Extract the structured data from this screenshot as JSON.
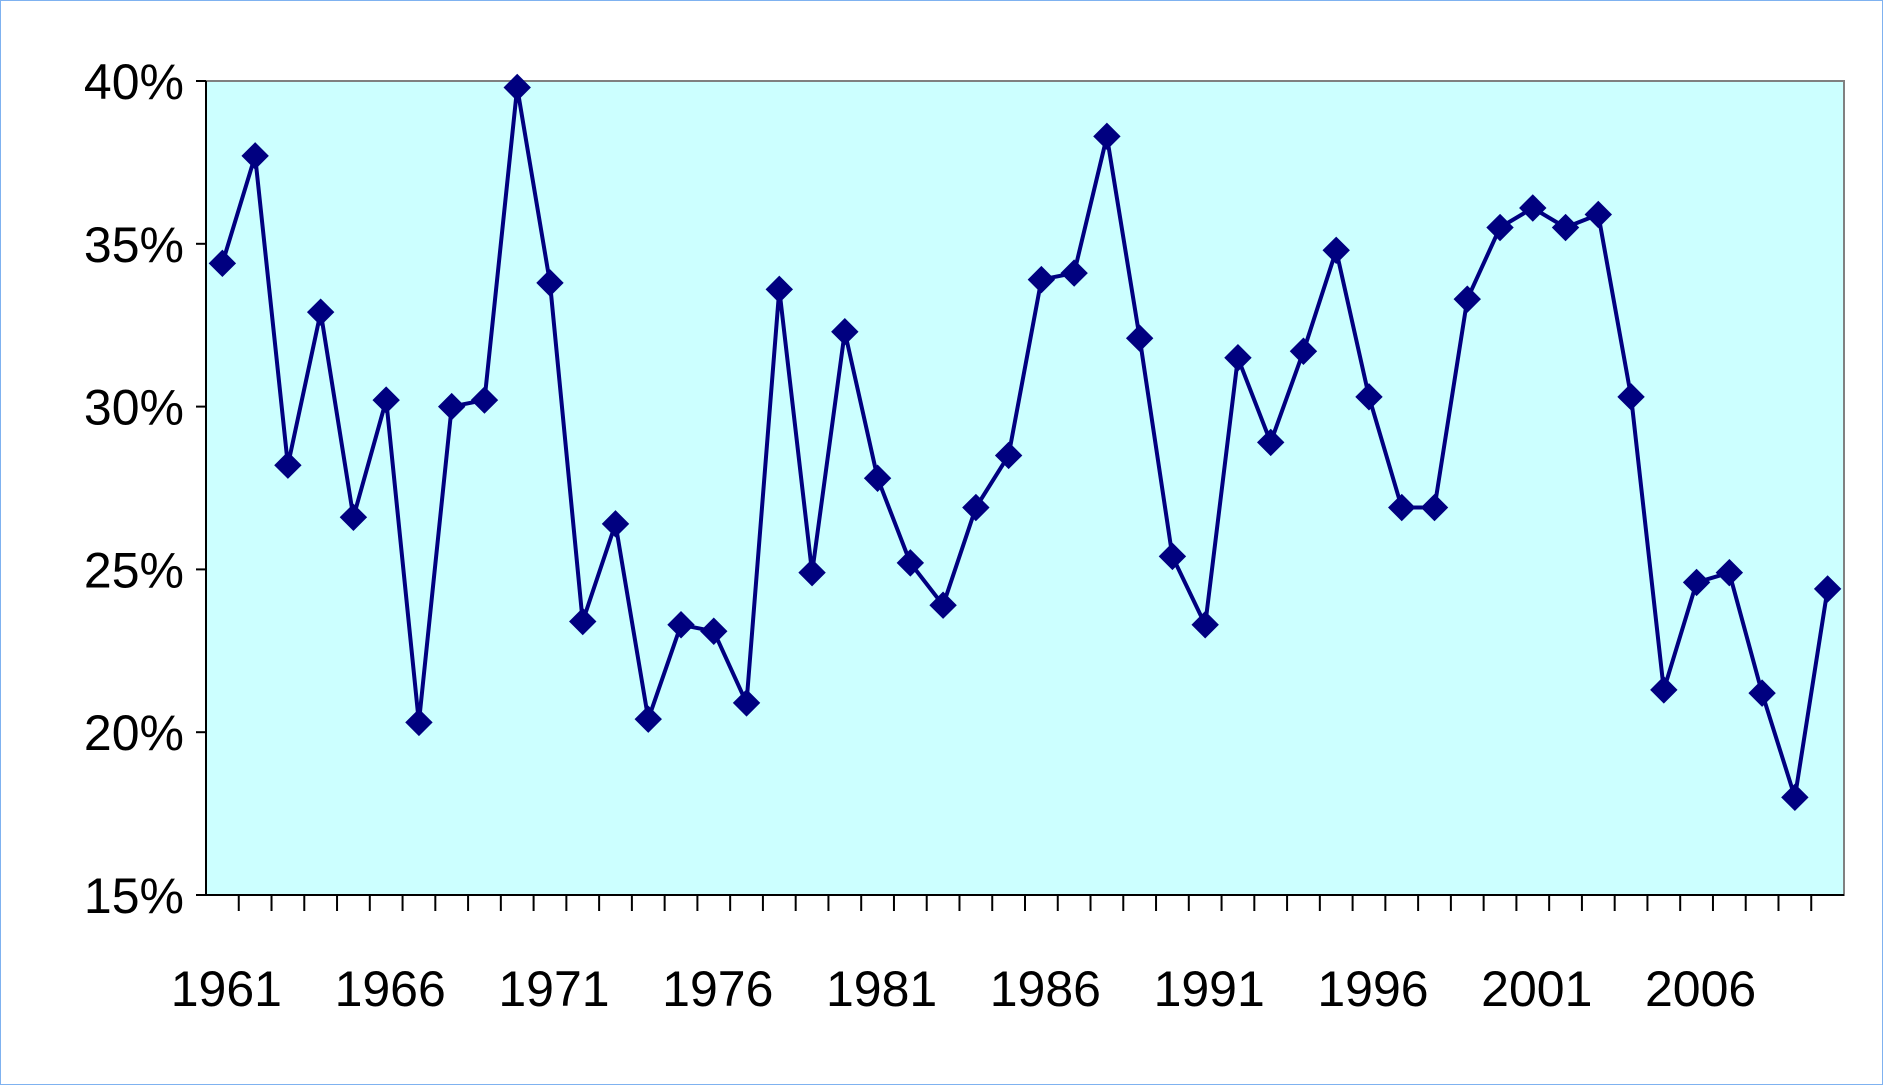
{
  "chart_data": {
    "type": "line",
    "title": "",
    "xlabel": "",
    "ylabel": "",
    "x": [
      1961,
      1962,
      1963,
      1964,
      1965,
      1966,
      1967,
      1968,
      1969,
      1970,
      1971,
      1972,
      1973,
      1974,
      1975,
      1976,
      1977,
      1978,
      1979,
      1980,
      1981,
      1982,
      1983,
      1984,
      1985,
      1986,
      1987,
      1988,
      1989,
      1990,
      1991,
      1992,
      1993,
      1994,
      1995,
      1996,
      1997,
      1998,
      1999,
      2000,
      2001,
      2002,
      2003,
      2004,
      2005,
      2006,
      2007,
      2008,
      2009,
      2010
    ],
    "series": [
      {
        "values": [
          34.4,
          37.7,
          28.2,
          32.9,
          26.6,
          30.2,
          20.3,
          30.0,
          30.2,
          39.8,
          33.8,
          23.4,
          26.4,
          20.4,
          23.3,
          23.1,
          20.9,
          33.6,
          24.9,
          32.3,
          27.8,
          25.2,
          23.9,
          26.9,
          28.5,
          33.9,
          34.1,
          38.3,
          32.1,
          25.4,
          23.3,
          31.5,
          28.9,
          31.7,
          34.8,
          30.3,
          26.9,
          26.9,
          33.3,
          35.5,
          36.1,
          35.5,
          35.9,
          30.3,
          21.3,
          24.6,
          24.9,
          21.2,
          18.0,
          24.4
        ]
      }
    ],
    "ylim": [
      15,
      40
    ],
    "y_ticks": [
      15,
      20,
      25,
      30,
      35,
      40
    ],
    "y_tick_labels": [
      "15%",
      "20%",
      "25%",
      "30%",
      "35%",
      "40%"
    ],
    "x_tick_labels": [
      "1961",
      "1966",
      "1971",
      "1976",
      "1981",
      "1986",
      "1991",
      "1996",
      "2001",
      "2006"
    ],
    "grid": false,
    "legend": "none",
    "marker": "diamond",
    "colors": {
      "line": "#000080",
      "plot_background": "#ccffff",
      "frame_border": "#7fb2f0",
      "axis": "#000000"
    }
  }
}
